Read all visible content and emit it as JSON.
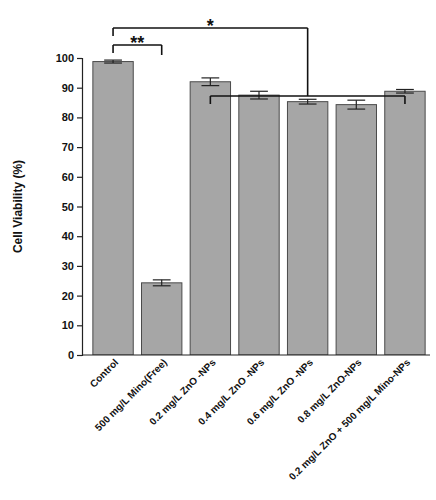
{
  "chart_data": {
    "type": "bar",
    "y_label": "Cell Viability (%)",
    "categories": [
      "Control",
      "500 mg/L Mino(Free)",
      "0.2 mg/L ZnO -NPs",
      "0.4 mg/L ZnO -NPs",
      "0.6 mg/L ZnO -NPs",
      "0.8 mg/L ZnO-NPs",
      "0.2 mg/L ZnO + 500 mg/L Mino-NPs"
    ],
    "values": [
      98.8,
      24.3,
      92,
      87.5,
      85.3,
      84.3,
      88.8
    ],
    "errors": [
      0.5,
      1,
      1.3,
      1.3,
      0.8,
      1.5,
      0.6
    ],
    "color": "#a6a6a6",
    "ylim": [
      0,
      100
    ],
    "yticks": [
      0,
      10,
      20,
      30,
      40,
      50,
      60,
      70,
      80,
      90,
      100
    ],
    "grid": false,
    "annotations": [
      "**",
      "*"
    ]
  }
}
